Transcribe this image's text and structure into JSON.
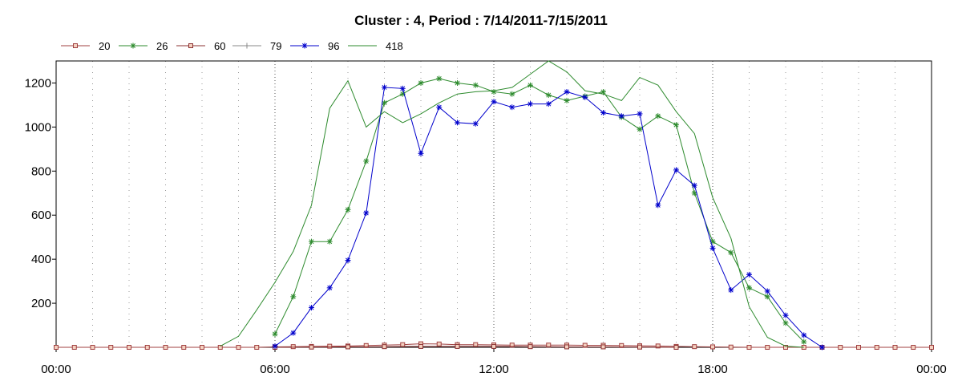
{
  "chart_data": {
    "type": "line",
    "title": "Cluster : 4, Period : 7/14/2011-7/15/2011",
    "xlabel": "",
    "ylabel": "",
    "x_unit": "hours",
    "xlim": [
      0,
      24
    ],
    "ylim": [
      0,
      1300
    ],
    "x_ticks": [
      {
        "value": 0,
        "label": "00:00"
      },
      {
        "value": 6,
        "label": "06:00"
      },
      {
        "value": 12,
        "label": "12:00"
      },
      {
        "value": 18,
        "label": "18:00"
      },
      {
        "value": 24,
        "label": "00:00"
      }
    ],
    "y_ticks": [
      {
        "value": 200,
        "label": "200"
      },
      {
        "value": 400,
        "label": "400"
      },
      {
        "value": 600,
        "label": "600"
      },
      {
        "value": 800,
        "label": "800"
      },
      {
        "value": 1000,
        "label": "1000"
      },
      {
        "value": 1200,
        "label": "1200"
      }
    ],
    "grid": true,
    "legend_position": "top-left",
    "series": [
      {
        "name": "20",
        "color": "#a04040",
        "marker": "square",
        "x": [
          0,
          0.5,
          1,
          1.5,
          2,
          2.5,
          3,
          3.5,
          4,
          4.5,
          5,
          5.5,
          6,
          6.5,
          7,
          7.5,
          8,
          8.5,
          9,
          9.5,
          10,
          10.5,
          11,
          11.5,
          12,
          12.5,
          13,
          13.5,
          14,
          14.5,
          15,
          15.5,
          16,
          16.5,
          17,
          17.5,
          18,
          18.5,
          19,
          19.5,
          20,
          20.5,
          21,
          21.5,
          22,
          22.5,
          23,
          23.5,
          24
        ],
        "y": [
          0,
          0,
          0,
          0,
          0,
          0,
          0,
          0,
          0,
          0,
          0,
          0,
          2,
          3,
          4,
          5,
          6,
          8,
          10,
          12,
          16,
          15,
          12,
          12,
          11,
          10,
          10,
          10,
          10,
          9,
          9,
          8,
          7,
          6,
          4,
          3,
          2,
          1,
          0,
          0,
          0,
          0,
          0,
          0,
          0,
          0,
          0,
          0,
          0
        ]
      },
      {
        "name": "26",
        "color": "#2e8b2e",
        "marker": "asterisk",
        "x": [
          6,
          6.5,
          7,
          7.5,
          8,
          8.5,
          9,
          9.5,
          10,
          10.5,
          11,
          11.5,
          12,
          12.5,
          13,
          13.5,
          14,
          14.5,
          15,
          15.5,
          16,
          16.5,
          17,
          17.5,
          18,
          18.5,
          19,
          19.5,
          20,
          20.5
        ],
        "y": [
          60,
          230,
          480,
          480,
          625,
          845,
          1110,
          1150,
          1200,
          1220,
          1200,
          1190,
          1160,
          1150,
          1190,
          1145,
          1120,
          1140,
          1160,
          1045,
          990,
          1050,
          1010,
          700,
          480,
          430,
          270,
          230,
          110,
          25
        ]
      },
      {
        "name": "60",
        "color": "#8b3030",
        "marker": "square",
        "x": [
          6,
          7,
          8,
          9,
          10,
          11,
          12,
          13,
          14,
          15,
          16,
          17
        ],
        "y": [
          0,
          1,
          2,
          3,
          4,
          4,
          4,
          3,
          2,
          2,
          1,
          0
        ]
      },
      {
        "name": "79",
        "color": "#888888",
        "marker": "plus",
        "x": [],
        "y": []
      },
      {
        "name": "96",
        "color": "#0000cc",
        "marker": "asterisk",
        "x": [
          6,
          6.5,
          7,
          7.5,
          8,
          8.5,
          9,
          9.5,
          10,
          10.5,
          11,
          11.5,
          12,
          12.5,
          13,
          13.5,
          14,
          14.5,
          15,
          15.5,
          16,
          16.5,
          17,
          17.5,
          18,
          18.5,
          19,
          19.5,
          20,
          20.5,
          21
        ],
        "y": [
          5,
          65,
          180,
          270,
          395,
          610,
          1180,
          1175,
          880,
          1090,
          1020,
          1015,
          1115,
          1090,
          1105,
          1105,
          1160,
          1135,
          1065,
          1050,
          1060,
          645,
          805,
          735,
          450,
          260,
          330,
          255,
          145,
          55,
          0
        ]
      },
      {
        "name": "418",
        "color": "#2e8b2e",
        "marker": "none",
        "x": [
          4.5,
          5,
          5.5,
          6,
          6.5,
          7,
          7.5,
          8,
          8.5,
          9,
          9.5,
          10,
          10.5,
          11,
          11.5,
          12,
          12.5,
          13,
          13.5,
          14,
          14.5,
          15,
          15.5,
          16,
          16.5,
          17,
          17.5,
          18,
          18.5,
          19,
          19.5,
          20,
          20.5
        ],
        "y": [
          5,
          50,
          170,
          295,
          435,
          645,
          1085,
          1210,
          1000,
          1070,
          1020,
          1060,
          1110,
          1150,
          1160,
          1165,
          1180,
          1240,
          1300,
          1250,
          1165,
          1150,
          1120,
          1225,
          1190,
          1070,
          970,
          680,
          495,
          185,
          45,
          5,
          0
        ]
      }
    ]
  }
}
